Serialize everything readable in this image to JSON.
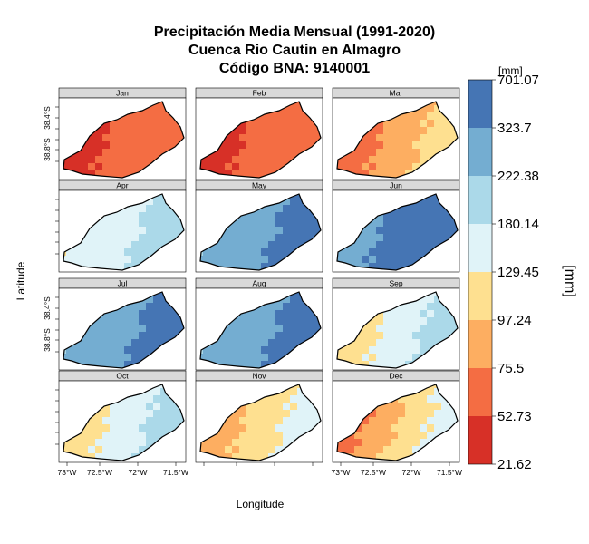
{
  "title": {
    "line1": "Precipitación Media Mensual (1991-2020)",
    "line2": "Cuenca Rio Cautin en Almagro",
    "line3": "Código BNA: 9140001"
  },
  "axes": {
    "ylabel": "Latitude",
    "xlabel": "Longitude",
    "x_ticks": [
      "73°W",
      "72.5°W",
      "72°W",
      "71.5°W"
    ],
    "y_ticks": [
      "38.4°S",
      "38.8°S"
    ]
  },
  "colorbar": {
    "unit_top": "[mm]",
    "unit_side": "[mm]",
    "breaks": [
      "701.07",
      "323.7",
      "222.38",
      "180.14",
      "129.45",
      "97.24",
      "75.5",
      "52.73",
      "21.62"
    ],
    "colors_top_to_bottom": [
      "#4575b4",
      "#74add1",
      "#abd9e9",
      "#e0f3f8",
      "#fee090",
      "#fdae61",
      "#f46d43",
      "#d73027"
    ]
  },
  "panels": [
    {
      "month": "Jan",
      "west": 7,
      "east": 6
    },
    {
      "month": "Feb",
      "west": 7,
      "east": 6
    },
    {
      "month": "Mar",
      "west": 7,
      "east": 4
    },
    {
      "month": "Apr",
      "west": 4,
      "east": 2
    },
    {
      "month": "May",
      "west": 2,
      "east": 0
    },
    {
      "month": "Jun",
      "west": 1,
      "east": 0
    },
    {
      "month": "Jul",
      "west": 2,
      "east": 0
    },
    {
      "month": "Aug",
      "west": 2,
      "east": 0
    },
    {
      "month": "Sep",
      "west": 5,
      "east": 2
    },
    {
      "month": "Oct",
      "west": 5,
      "east": 2
    },
    {
      "month": "Nov",
      "west": 6,
      "east": 3
    },
    {
      "month": "Dec",
      "west": 7,
      "east": 3
    }
  ]
}
